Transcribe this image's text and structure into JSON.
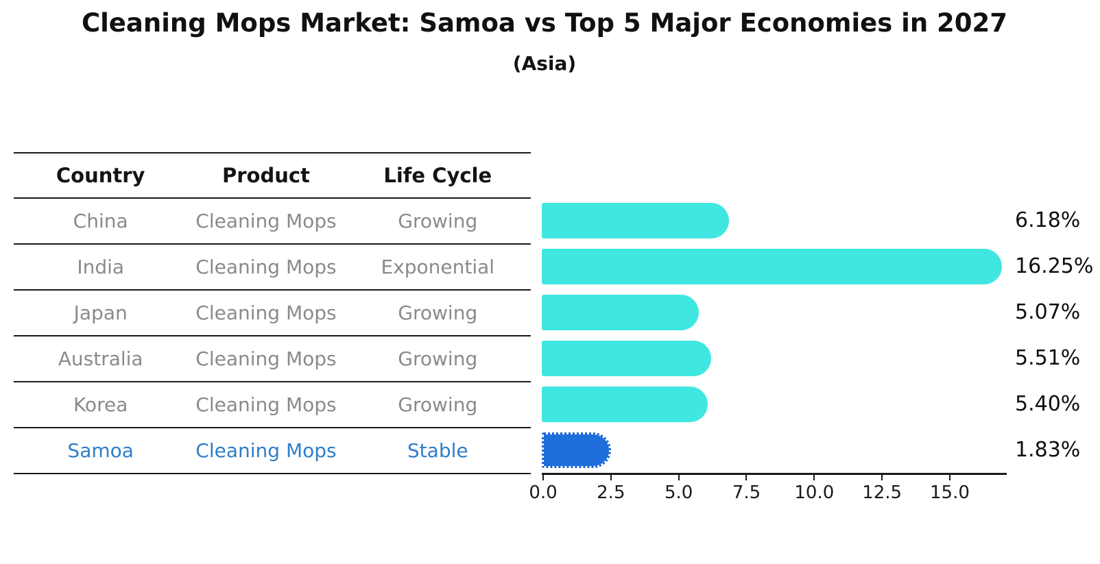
{
  "header": {
    "title": "Cleaning Mops Market: Samoa vs Top 5 Major Economies in 2027",
    "subtitle": "(Asia)"
  },
  "table": {
    "headers": [
      "Country",
      "Product",
      "Life Cycle"
    ],
    "rows": [
      {
        "country": "China",
        "product": "Cleaning Mops",
        "life_cycle": "Growing",
        "highlight": false
      },
      {
        "country": "India",
        "product": "Cleaning Mops",
        "life_cycle": "Exponential",
        "highlight": false
      },
      {
        "country": "Japan",
        "product": "Cleaning Mops",
        "life_cycle": "Growing",
        "highlight": false
      },
      {
        "country": "Australia",
        "product": "Cleaning Mops",
        "life_cycle": "Growing",
        "highlight": false
      },
      {
        "country": "Korea",
        "product": "Cleaning Mops",
        "life_cycle": "Growing",
        "highlight": false
      },
      {
        "country": "Samoa",
        "product": "Cleaning Mops",
        "life_cycle": "Stable",
        "highlight": true
      }
    ],
    "text_color": "#8a8a8a",
    "highlight_text_color": "#2e7ec8"
  },
  "chart_data": {
    "type": "bar",
    "orientation": "horizontal",
    "title": "Cleaning Mops Market: Samoa vs Top 5 Major Economies in 2027",
    "subtitle": "(Asia)",
    "categories": [
      "China",
      "India",
      "Japan",
      "Australia",
      "Korea",
      "Samoa"
    ],
    "values": [
      6.18,
      16.25,
      5.07,
      5.51,
      5.4,
      1.83
    ],
    "value_labels": [
      "6.18%",
      "16.25%",
      "5.07%",
      "5.51%",
      "5.40%",
      "1.83%"
    ],
    "highlight_index": 5,
    "bar_color": "#40e7e1",
    "highlight_bar_color": "#1e6edc",
    "xlim": [
      0,
      17.1
    ],
    "x_ticks": [
      0.0,
      2.5,
      5.0,
      7.5,
      10.0,
      12.5,
      15.0
    ],
    "x_tick_labels": [
      "0.0",
      "2.5",
      "5.0",
      "7.5",
      "10.0",
      "12.5",
      "15.0"
    ],
    "xlabel": "",
    "ylabel": "",
    "grid": false,
    "legend": false
  }
}
